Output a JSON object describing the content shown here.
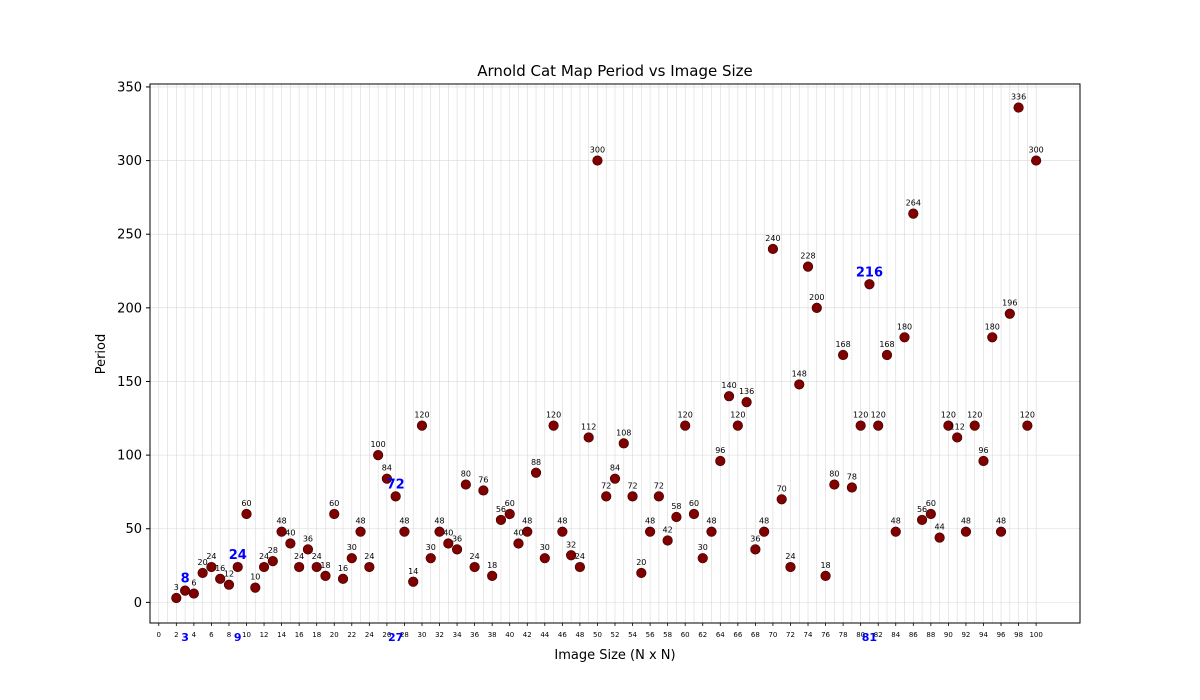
{
  "chart_data": {
    "type": "scatter",
    "title": "Arnold Cat Map Period vs Image Size",
    "xlabel": "Image Size (N x N)",
    "ylabel": "Period",
    "xlim": [
      -1,
      105
    ],
    "ylim": [
      -14,
      352
    ],
    "grid": true,
    "x_ticks": [
      0,
      2,
      4,
      6,
      8,
      10,
      12,
      14,
      16,
      18,
      20,
      22,
      24,
      26,
      28,
      30,
      32,
      34,
      36,
      38,
      40,
      42,
      44,
      46,
      48,
      50,
      52,
      54,
      56,
      58,
      60,
      62,
      64,
      66,
      68,
      70,
      72,
      74,
      76,
      78,
      80,
      82,
      84,
      86,
      88,
      90,
      92,
      94,
      96,
      98,
      100
    ],
    "y_ticks": [
      0,
      50,
      100,
      150,
      200,
      250,
      300,
      350
    ],
    "point_color": "#800000",
    "highlight_color": "#0000ff",
    "highlight_x_ticks": [
      3,
      9,
      27,
      81
    ],
    "points": [
      {
        "x": 2,
        "y": 3
      },
      {
        "x": 3,
        "y": 8
      },
      {
        "x": 4,
        "y": 6
      },
      {
        "x": 5,
        "y": 20
      },
      {
        "x": 6,
        "y": 24
      },
      {
        "x": 7,
        "y": 16
      },
      {
        "x": 8,
        "y": 12
      },
      {
        "x": 9,
        "y": 24
      },
      {
        "x": 10,
        "y": 60
      },
      {
        "x": 11,
        "y": 10
      },
      {
        "x": 12,
        "y": 24
      },
      {
        "x": 13,
        "y": 28
      },
      {
        "x": 14,
        "y": 48
      },
      {
        "x": 15,
        "y": 40
      },
      {
        "x": 16,
        "y": 24
      },
      {
        "x": 17,
        "y": 36
      },
      {
        "x": 18,
        "y": 24
      },
      {
        "x": 19,
        "y": 18
      },
      {
        "x": 20,
        "y": 60
      },
      {
        "x": 21,
        "y": 16
      },
      {
        "x": 22,
        "y": 30
      },
      {
        "x": 23,
        "y": 48
      },
      {
        "x": 24,
        "y": 24
      },
      {
        "x": 25,
        "y": 100
      },
      {
        "x": 26,
        "y": 84
      },
      {
        "x": 27,
        "y": 72
      },
      {
        "x": 28,
        "y": 48
      },
      {
        "x": 29,
        "y": 14
      },
      {
        "x": 30,
        "y": 120
      },
      {
        "x": 31,
        "y": 30
      },
      {
        "x": 32,
        "y": 48
      },
      {
        "x": 33,
        "y": 40
      },
      {
        "x": 34,
        "y": 36
      },
      {
        "x": 35,
        "y": 80
      },
      {
        "x": 36,
        "y": 24
      },
      {
        "x": 37,
        "y": 76
      },
      {
        "x": 38,
        "y": 18
      },
      {
        "x": 39,
        "y": 56
      },
      {
        "x": 40,
        "y": 60
      },
      {
        "x": 41,
        "y": 40
      },
      {
        "x": 42,
        "y": 48
      },
      {
        "x": 43,
        "y": 88
      },
      {
        "x": 44,
        "y": 30
      },
      {
        "x": 45,
        "y": 120
      },
      {
        "x": 46,
        "y": 48
      },
      {
        "x": 47,
        "y": 32
      },
      {
        "x": 48,
        "y": 24
      },
      {
        "x": 49,
        "y": 112
      },
      {
        "x": 50,
        "y": 300
      },
      {
        "x": 51,
        "y": 72
      },
      {
        "x": 52,
        "y": 84
      },
      {
        "x": 53,
        "y": 108
      },
      {
        "x": 54,
        "y": 72
      },
      {
        "x": 55,
        "y": 20
      },
      {
        "x": 56,
        "y": 48
      },
      {
        "x": 57,
        "y": 72
      },
      {
        "x": 58,
        "y": 42
      },
      {
        "x": 59,
        "y": 58
      },
      {
        "x": 60,
        "y": 120
      },
      {
        "x": 61,
        "y": 60
      },
      {
        "x": 62,
        "y": 30
      },
      {
        "x": 63,
        "y": 48
      },
      {
        "x": 64,
        "y": 96
      },
      {
        "x": 65,
        "y": 140
      },
      {
        "x": 66,
        "y": 120
      },
      {
        "x": 67,
        "y": 136
      },
      {
        "x": 68,
        "y": 36
      },
      {
        "x": 69,
        "y": 48
      },
      {
        "x": 70,
        "y": 240
      },
      {
        "x": 71,
        "y": 70
      },
      {
        "x": 72,
        "y": 24
      },
      {
        "x": 73,
        "y": 148
      },
      {
        "x": 74,
        "y": 228
      },
      {
        "x": 75,
        "y": 200
      },
      {
        "x": 76,
        "y": 18
      },
      {
        "x": 77,
        "y": 80
      },
      {
        "x": 78,
        "y": 168
      },
      {
        "x": 79,
        "y": 78
      },
      {
        "x": 80,
        "y": 120
      },
      {
        "x": 81,
        "y": 216
      },
      {
        "x": 82,
        "y": 120
      },
      {
        "x": 83,
        "y": 168
      },
      {
        "x": 84,
        "y": 48
      },
      {
        "x": 85,
        "y": 180
      },
      {
        "x": 86,
        "y": 264
      },
      {
        "x": 87,
        "y": 56
      },
      {
        "x": 88,
        "y": 60
      },
      {
        "x": 89,
        "y": 44
      },
      {
        "x": 90,
        "y": 120
      },
      {
        "x": 91,
        "y": 112
      },
      {
        "x": 92,
        "y": 48
      },
      {
        "x": 93,
        "y": 120
      },
      {
        "x": 94,
        "y": 96
      },
      {
        "x": 95,
        "y": 180
      },
      {
        "x": 96,
        "y": 48
      },
      {
        "x": 97,
        "y": 196
      },
      {
        "x": 98,
        "y": 336
      },
      {
        "x": 99,
        "y": 120
      },
      {
        "x": 100,
        "y": 300
      }
    ]
  }
}
